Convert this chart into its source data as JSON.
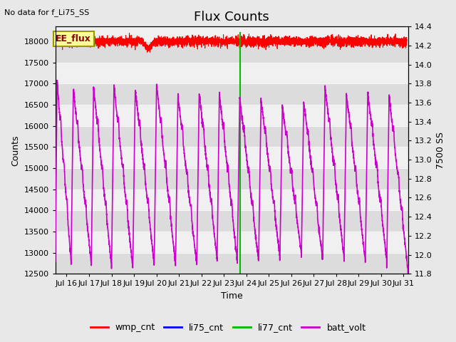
{
  "title": "Flux Counts",
  "no_data_label": "No data for f_Li75_SS",
  "ee_flux_label": "EE_flux",
  "xlabel": "Time",
  "ylabel_left": "Counts",
  "ylabel_right": "7500 SS",
  "xlim_days": [
    15.5,
    31.2
  ],
  "ylim_left": [
    12500,
    18350
  ],
  "ylim_right": [
    11.8,
    14.4
  ],
  "xtick_labels": [
    "Jul 16",
    "Jul 17",
    "Jul 18",
    "Jul 19",
    "Jul 20",
    "Jul 21",
    "Jul 22",
    "Jul 23",
    "Jul 24",
    "Jul 25",
    "Jul 26",
    "Jul 27",
    "Jul 28",
    "Jul 29",
    "Jul 30",
    "Jul 31"
  ],
  "xtick_days": [
    16,
    17,
    18,
    19,
    20,
    21,
    22,
    23,
    24,
    25,
    26,
    27,
    28,
    29,
    30,
    31
  ],
  "yticks_left": [
    12500,
    13000,
    13500,
    14000,
    14500,
    15000,
    15500,
    16000,
    16500,
    17000,
    17500,
    18000
  ],
  "yticks_right": [
    11.8,
    12.0,
    12.2,
    12.4,
    12.6,
    12.8,
    13.0,
    13.2,
    13.4,
    13.6,
    13.8,
    14.0,
    14.2,
    14.4
  ],
  "wmp_color": "#ff0000",
  "li75_color": "#0000ff",
  "li77_color": "#00bb00",
  "batt_color": "#cc00cc",
  "batt_lw": 1.2,
  "wmp_lw": 0.8,
  "li77_lw": 1.5,
  "background_color": "#e8e8e8",
  "plot_bg": "#f0f0f0",
  "stripe_color": "#dcdcdc",
  "legend_entries": [
    "wmp_cnt",
    "li75_cnt",
    "li77_cnt",
    "batt_volt"
  ],
  "legend_colors": [
    "#ff0000",
    "#0000ff",
    "#00bb00",
    "#cc00cc"
  ],
  "ee_flux_box_facecolor": "#ffff99",
  "ee_flux_box_edgecolor": "#999900",
  "title_fontsize": 13,
  "label_fontsize": 9,
  "tick_fontsize": 8,
  "figsize": [
    6.4,
    4.8
  ],
  "dpi": 100
}
